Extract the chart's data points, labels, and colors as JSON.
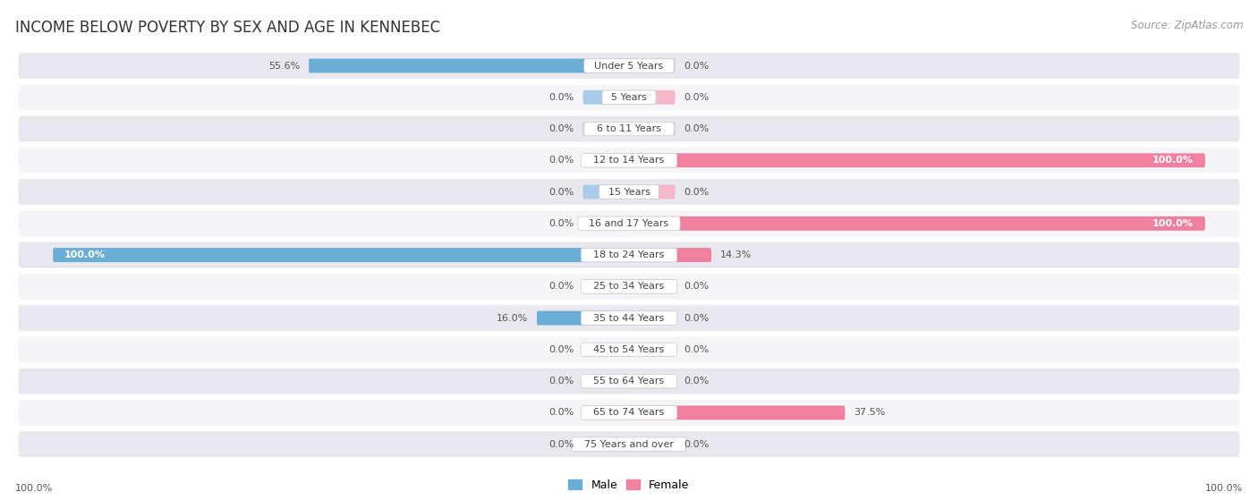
{
  "title": "INCOME BELOW POVERTY BY SEX AND AGE IN KENNEBEC",
  "source": "Source: ZipAtlas.com",
  "categories": [
    "Under 5 Years",
    "5 Years",
    "6 to 11 Years",
    "12 to 14 Years",
    "15 Years",
    "16 and 17 Years",
    "18 to 24 Years",
    "25 to 34 Years",
    "35 to 44 Years",
    "45 to 54 Years",
    "55 to 64 Years",
    "65 to 74 Years",
    "75 Years and over"
  ],
  "male_values": [
    55.6,
    0.0,
    0.0,
    0.0,
    0.0,
    0.0,
    100.0,
    0.0,
    16.0,
    0.0,
    0.0,
    0.0,
    0.0
  ],
  "female_values": [
    0.0,
    0.0,
    0.0,
    100.0,
    0.0,
    100.0,
    14.3,
    0.0,
    0.0,
    0.0,
    0.0,
    37.5,
    0.0
  ],
  "male_color": "#6aaed6",
  "female_color": "#f080a0",
  "male_color_light": "#aacce8",
  "female_color_light": "#f4b8c8",
  "male_label": "Male",
  "female_label": "Female",
  "row_bg_color_odd": "#e8e8ee",
  "row_bg_color_even": "#f5f5f8",
  "axis_label_left": "100.0%",
  "axis_label_right": "100.0%",
  "title_fontsize": 12,
  "source_fontsize": 8.5,
  "label_fontsize": 8,
  "category_fontsize": 8,
  "max_val": 100,
  "stub_val": 8
}
